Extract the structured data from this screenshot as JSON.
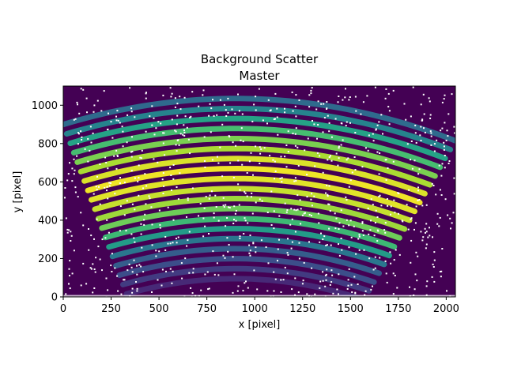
{
  "chart_data": {
    "type": "heatmap",
    "title": "Background Scatter",
    "subtitle": "Master",
    "xlabel": "x [pixel]",
    "ylabel": "y [pixel]",
    "xlim": [
      0,
      2048
    ],
    "ylim": [
      0,
      1100
    ],
    "x_ticks": [
      0,
      250,
      500,
      750,
      1000,
      1250,
      1500,
      1750,
      2000
    ],
    "y_ticks": [
      0,
      200,
      400,
      600,
      800,
      1000
    ],
    "colormap": "viridis",
    "background_color": "#440154",
    "mask_color": "#ffffff",
    "grid": false,
    "legend": "none",
    "orders": {
      "count": 19,
      "center_x": 900,
      "apex_y_bottom": 95,
      "apex_y_top": 1035,
      "left_edge_bottom_x": 330,
      "left_edge_top_x": 0,
      "right_edge_bottom_x": 1570,
      "right_edge_top_x": 2048,
      "intensity_profile": [
        0.12,
        0.18,
        0.24,
        0.3,
        0.4,
        0.55,
        0.68,
        0.78,
        0.86,
        0.92,
        0.96,
        0.98,
        0.95,
        0.88,
        0.8,
        0.7,
        0.58,
        0.45,
        0.35
      ]
    },
    "bright_core": {
      "x": 900,
      "y": 720,
      "intensity": 1.0
    }
  }
}
